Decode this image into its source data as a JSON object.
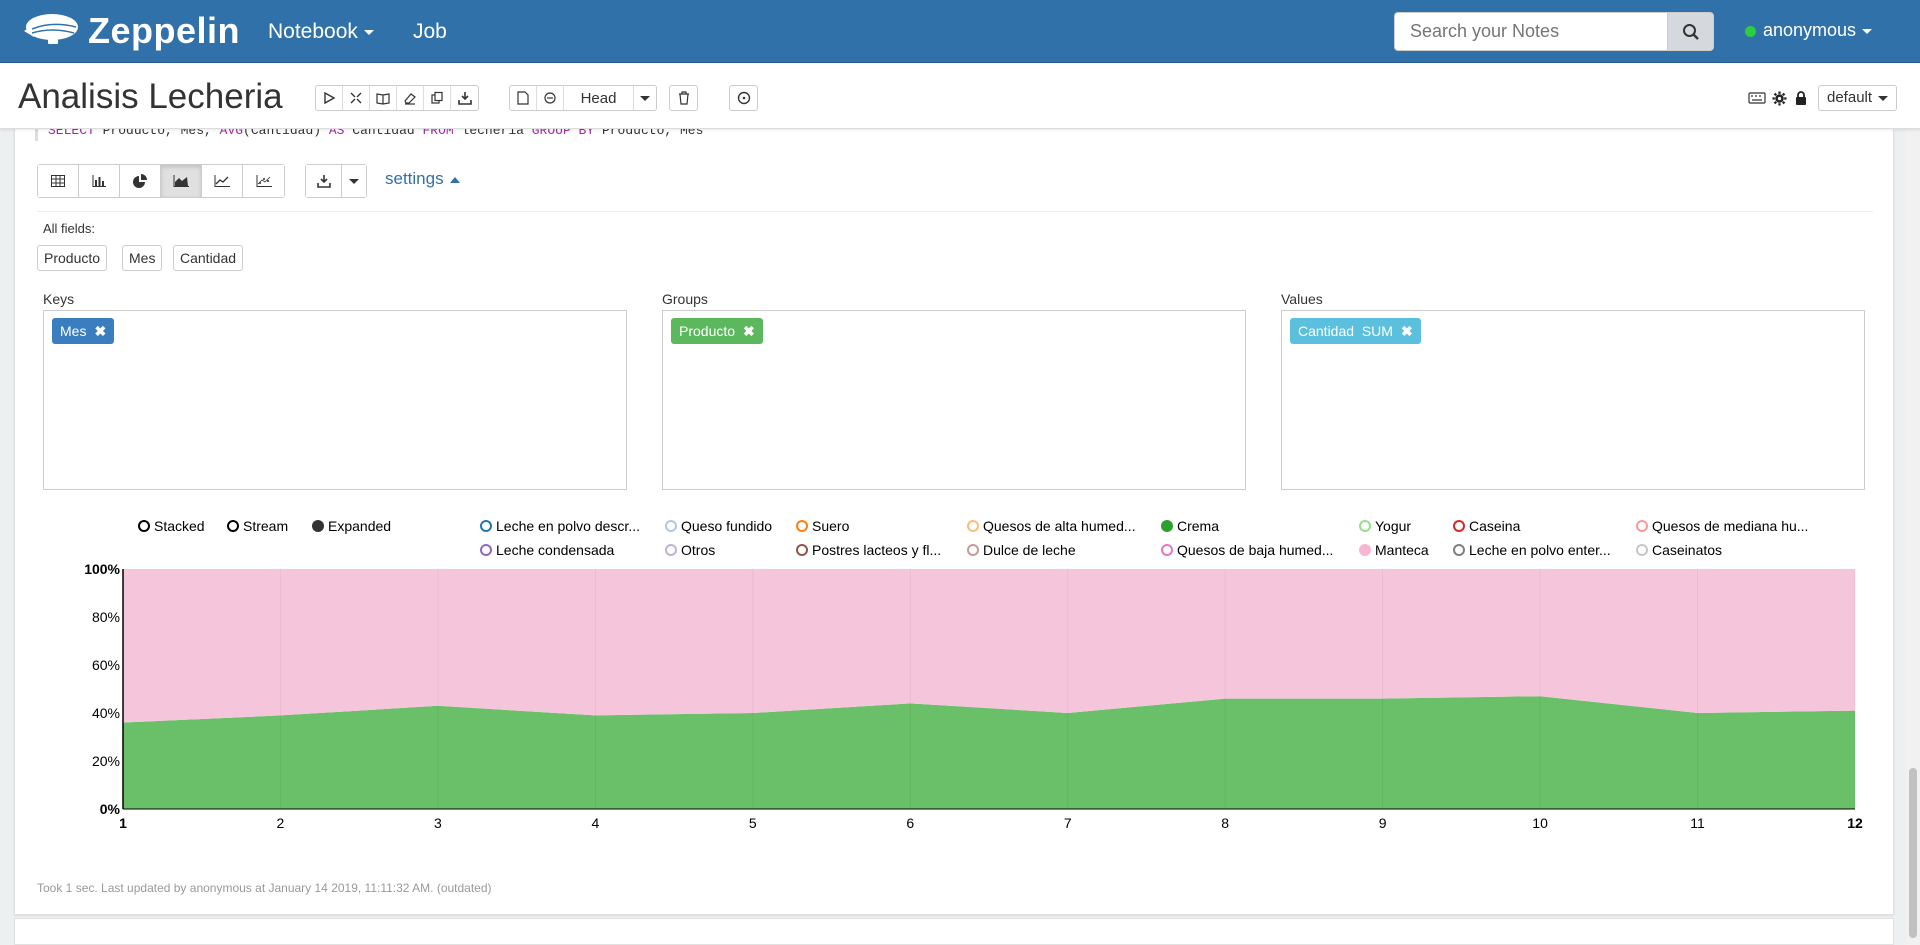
{
  "navbar": {
    "brand": "Zeppelin",
    "notebook_label": "Notebook",
    "job_label": "Job",
    "search_placeholder": "Search your Notes",
    "user": "anonymous"
  },
  "note": {
    "title": "Analisis Lecheria",
    "head_label": "Head",
    "interpreter": "default"
  },
  "paragraph": {
    "code": {
      "kw1": "SELECT",
      "part1": " Producto, Mes, ",
      "fn": "AVG",
      "part2": "(Cantidad) ",
      "kw2": "AS",
      "part3": " Cantidad ",
      "kw3": "FROM",
      "part4": " lecheria ",
      "kw4": "GROUP BY",
      "part5": " Producto, Mes"
    },
    "settings_label": "settings",
    "all_fields_label": "All fields:",
    "fields": [
      "Producto",
      "Mes",
      "Cantidad"
    ],
    "keys_label": "Keys",
    "groups_label": "Groups",
    "values_label": "Values",
    "keys": [
      "Mes"
    ],
    "groups": [
      "Producto"
    ],
    "values": [
      "Cantidad  SUM"
    ],
    "footer": "Took 1 sec. Last updated by anonymous at January 14 2019, 11:11:32 AM. (outdated)"
  },
  "colors": {
    "navbar": "#3071a9",
    "keys_pill": "#3a7ebf",
    "groups_pill": "#5cb85c",
    "values_pill": "#5bc0de",
    "crema": "#2ca02c",
    "manteca": "#f7b6d2"
  },
  "legend": {
    "modes": [
      {
        "label": "Stacked",
        "selected": false
      },
      {
        "label": "Stream",
        "selected": false
      },
      {
        "label": "Expanded",
        "selected": true
      }
    ],
    "series": [
      {
        "label": "Leche en polvo descr...",
        "color": "#1f77b4",
        "filled": false
      },
      {
        "label": "Queso fundido",
        "color": "#aec7e8",
        "filled": false
      },
      {
        "label": "Suero",
        "color": "#ff7f0e",
        "filled": false
      },
      {
        "label": "Quesos de alta humed...",
        "color": "#ffbb78",
        "filled": false
      },
      {
        "label": "Crema",
        "color": "#2ca02c",
        "filled": true
      },
      {
        "label": "Yogur",
        "color": "#98df8a",
        "filled": false
      },
      {
        "label": "Caseina",
        "color": "#d62728",
        "filled": false
      },
      {
        "label": "Quesos de mediana hu...",
        "color": "#ff9896",
        "filled": false
      },
      {
        "label": "Leche condensada",
        "color": "#9467bd",
        "filled": false
      },
      {
        "label": "Otros",
        "color": "#c5b0d5",
        "filled": false
      },
      {
        "label": "Postres lacteos y fl...",
        "color": "#8c564b",
        "filled": false
      },
      {
        "label": "Dulce de leche",
        "color": "#c49c94",
        "filled": false
      },
      {
        "label": "Quesos de baja humed...",
        "color": "#e377c2",
        "filled": false
      },
      {
        "label": "Manteca",
        "color": "#f7b6d2",
        "filled": true
      },
      {
        "label": "Leche en polvo enter...",
        "color": "#7f7f7f",
        "filled": false
      },
      {
        "label": "Caseinatos",
        "color": "#c7c7c7",
        "filled": false
      }
    ]
  },
  "chart_data": {
    "type": "area",
    "mode": "expanded",
    "x": [
      1,
      2,
      3,
      4,
      5,
      6,
      7,
      8,
      9,
      10,
      11,
      12
    ],
    "y_ticks": [
      "0%",
      "20%",
      "40%",
      "60%",
      "80%",
      "100%"
    ],
    "ylim": [
      0,
      100
    ],
    "series": [
      {
        "name": "Crema",
        "values": [
          36,
          39,
          43,
          39,
          40,
          44,
          40,
          46,
          46,
          47,
          40,
          41
        ],
        "color": "#6abf69"
      },
      {
        "name": "Manteca",
        "values": [
          64,
          61,
          57,
          61,
          60,
          56,
          60,
          54,
          54,
          53,
          60,
          59
        ],
        "color": "#f5c6db"
      }
    ]
  }
}
